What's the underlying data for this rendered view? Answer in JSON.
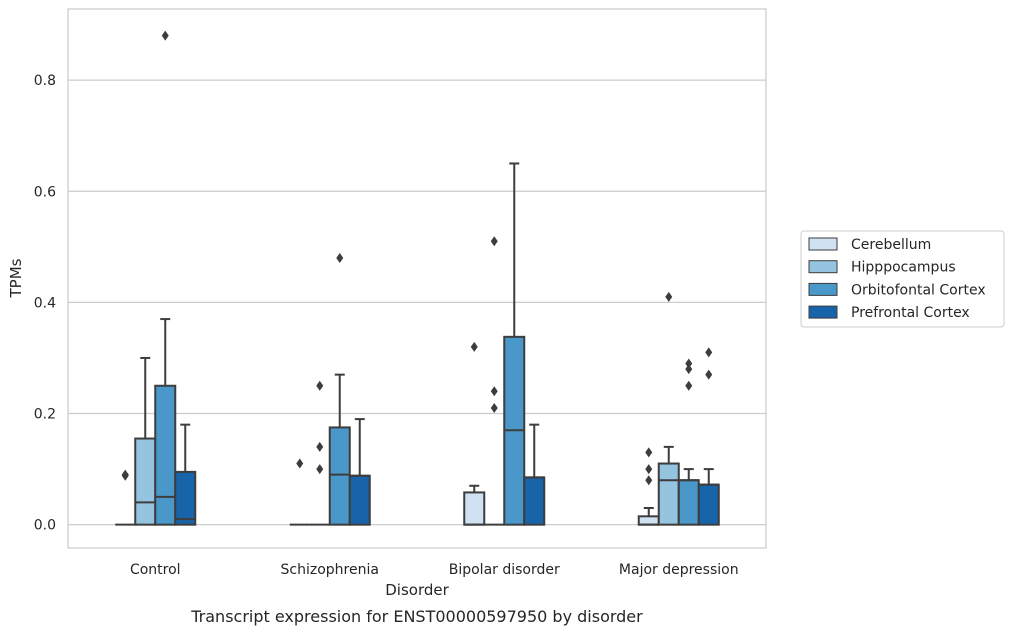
{
  "chart_data": {
    "type": "box",
    "caption": "Transcript expression for ENST00000597950 by disorder",
    "xlabel": "Disorder",
    "ylabel": "TPMs",
    "ylim": [
      -0.042,
      0.928
    ],
    "yticks": [
      0.0,
      0.2,
      0.4,
      0.6,
      0.8
    ],
    "ytick_labels": [
      "0.0",
      "0.2",
      "0.4",
      "0.6",
      "0.8"
    ],
    "grid": "horizontal",
    "legend_placement": "right",
    "categories": [
      "Control",
      "Schizophrenia",
      "Bipolar disorder",
      "Major depression"
    ],
    "series": [
      {
        "name": "Cerebellum",
        "color": "#d0e1f2",
        "boxes": [
          {
            "q1": 0,
            "median": 0,
            "q3": 0,
            "whislo": 0,
            "whishi": 0,
            "fliers": [
              0.09,
              0.088
            ]
          },
          {
            "q1": 0,
            "median": 0,
            "q3": 0,
            "whislo": 0,
            "whishi": 0,
            "fliers": [
              0.11
            ]
          },
          {
            "q1": 0,
            "median": 0,
            "q3": 0.058,
            "whislo": 0,
            "whishi": 0.07,
            "fliers": [
              0.32
            ]
          },
          {
            "q1": 0,
            "median": 0,
            "q3": 0.015,
            "whislo": 0,
            "whishi": 0.03,
            "fliers": [
              0.13,
              0.1,
              0.08
            ]
          }
        ]
      },
      {
        "name": "Hipppocampus",
        "color": "#94c4df",
        "boxes": [
          {
            "q1": 0,
            "median": 0.04,
            "q3": 0.155,
            "whislo": 0,
            "whishi": 0.3,
            "fliers": []
          },
          {
            "q1": 0,
            "median": 0,
            "q3": 0,
            "whislo": 0,
            "whishi": 0,
            "fliers": [
              0.25,
              0.14,
              0.1
            ]
          },
          {
            "q1": 0,
            "median": 0,
            "q3": 0,
            "whislo": 0,
            "whishi": 0,
            "fliers": [
              0.51,
              0.24,
              0.21
            ]
          },
          {
            "q1": 0,
            "median": 0.08,
            "q3": 0.11,
            "whislo": 0,
            "whishi": 0.14,
            "fliers": [
              0.41
            ]
          }
        ]
      },
      {
        "name": "Orbitofontal Cortex",
        "color": "#4a98c9",
        "boxes": [
          {
            "q1": 0,
            "median": 0.05,
            "q3": 0.25,
            "whislo": 0,
            "whishi": 0.37,
            "fliers": [
              0.88
            ]
          },
          {
            "q1": 0,
            "median": 0.09,
            "q3": 0.175,
            "whislo": 0,
            "whishi": 0.27,
            "fliers": [
              0.48
            ]
          },
          {
            "q1": 0,
            "median": 0.17,
            "q3": 0.338,
            "whislo": 0,
            "whishi": 0.65,
            "fliers": []
          },
          {
            "q1": 0,
            "median": 0.08,
            "q3": 0.08,
            "whislo": 0,
            "whishi": 0.1,
            "fliers": [
              0.29,
              0.28,
              0.25
            ]
          }
        ]
      },
      {
        "name": "Prefrontal Cortex",
        "color": "#1764ab",
        "boxes": [
          {
            "q1": 0,
            "median": 0.01,
            "q3": 0.095,
            "whislo": 0,
            "whishi": 0.18,
            "fliers": []
          },
          {
            "q1": 0,
            "median": 0.088,
            "q3": 0.088,
            "whislo": 0,
            "whishi": 0.19,
            "fliers": []
          },
          {
            "q1": 0,
            "median": 0.085,
            "q3": 0.085,
            "whislo": 0,
            "whishi": 0.18,
            "fliers": []
          },
          {
            "q1": 0,
            "median": 0.072,
            "q3": 0.072,
            "whislo": 0,
            "whishi": 0.1,
            "fliers": [
              0.31,
              0.27
            ]
          }
        ]
      }
    ]
  }
}
